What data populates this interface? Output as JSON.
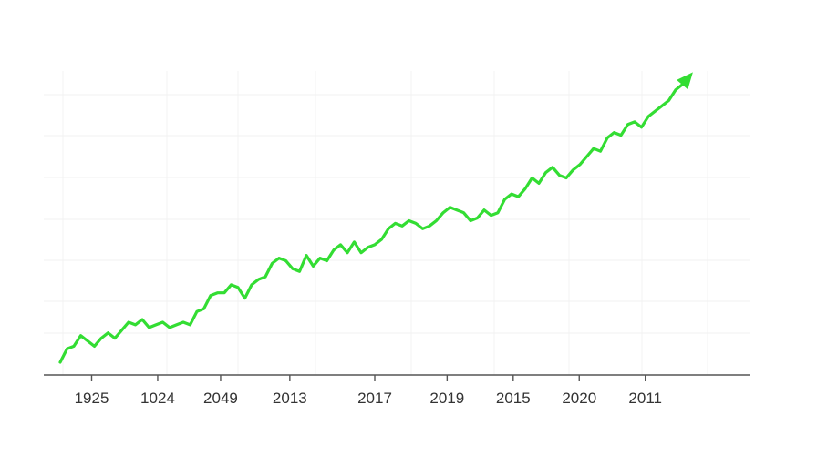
{
  "chart_data": {
    "type": "line",
    "title": "",
    "xlabel": "",
    "ylabel": "",
    "grid": true,
    "tick_labels": [
      "1925",
      "1024",
      "2049",
      "2013",
      "2017",
      "2019",
      "2015",
      "2020",
      "2011"
    ],
    "tick_positions": [
      5,
      15.5,
      25.5,
      36.5,
      50,
      61.5,
      72,
      82.5,
      93
    ],
    "x": [
      0,
      1,
      2,
      3,
      4,
      5,
      6,
      7,
      8,
      9,
      10,
      11,
      12,
      13,
      14,
      15,
      16,
      17,
      18,
      19,
      20,
      21,
      22,
      23,
      24,
      25,
      26,
      27,
      28,
      29,
      30,
      31,
      32,
      33,
      34,
      35,
      36,
      37,
      38,
      39,
      40,
      41,
      42,
      43,
      44,
      45,
      46,
      47,
      48,
      49,
      50,
      51,
      52,
      53,
      54,
      55,
      56,
      57,
      58,
      59,
      60,
      61,
      62,
      63,
      64,
      65,
      66,
      67,
      68,
      69,
      70,
      71,
      72,
      73,
      74,
      75,
      76,
      77,
      78,
      79,
      80,
      81,
      82,
      83,
      84,
      85,
      86,
      87,
      88,
      89,
      90,
      91,
      92
    ],
    "series": [
      {
        "name": "",
        "color": "#33dd33",
        "values": [
          2,
          7,
          8,
          12,
          10,
          8,
          11,
          13,
          11,
          14,
          17,
          16,
          18,
          15,
          16,
          17,
          15,
          16,
          17,
          16,
          21,
          22,
          27,
          28,
          28,
          31,
          30,
          26,
          31,
          33,
          34,
          39,
          41,
          40,
          37,
          36,
          42,
          38,
          41,
          40,
          44,
          46,
          43,
          47,
          43,
          45,
          46,
          48,
          52,
          54,
          53,
          55,
          54,
          52,
          53,
          55,
          58,
          60,
          59,
          58,
          55,
          56,
          59,
          57,
          58,
          63,
          65,
          64,
          67,
          71,
          69,
          73,
          75,
          72,
          71,
          74,
          76,
          79,
          82,
          81,
          86,
          88,
          87,
          91,
          92,
          90,
          94,
          96,
          98,
          100,
          104,
          106,
          109
        ]
      }
    ]
  }
}
